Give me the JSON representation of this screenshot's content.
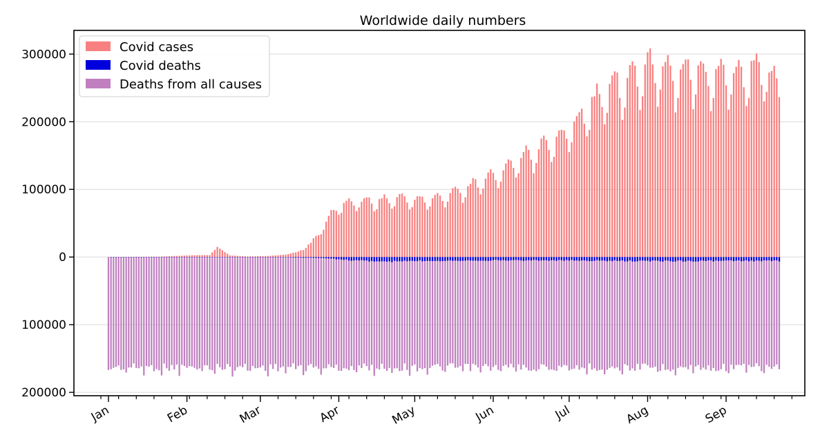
{
  "chart_data": {
    "type": "bar",
    "title": "Worldwide daily numbers",
    "xlabel": "",
    "ylabel": "",
    "ylim": [
      -205000,
      335000
    ],
    "y_ticks": [
      {
        "value": 300000,
        "label": "300000"
      },
      {
        "value": 200000,
        "label": "200000"
      },
      {
        "value": 100000,
        "label": "100000"
      },
      {
        "value": 0,
        "label": "0"
      },
      {
        "value": -100000,
        "label": "100000"
      },
      {
        "value": -200000,
        "label": "200000"
      }
    ],
    "x_months": [
      "Jan",
      "Feb",
      "Mar",
      "Apr",
      "May",
      "Jun",
      "Jul",
      "Aug",
      "Sep"
    ],
    "x_day_start": 0,
    "x_day_end": 265,
    "month_start_days": [
      0,
      31,
      60,
      91,
      121,
      152,
      182,
      213,
      244
    ],
    "legend_position": "top-left",
    "grid": "horizontal",
    "series": [
      {
        "name": "Covid cases",
        "color": "#f88080",
        "keyframes_day_value": [
          [
            0,
            0
          ],
          [
            20,
            600
          ],
          [
            33,
            2600
          ],
          [
            40,
            2900
          ],
          [
            43,
            15000
          ],
          [
            48,
            2400
          ],
          [
            55,
            800
          ],
          [
            63,
            1500
          ],
          [
            70,
            3500
          ],
          [
            75,
            8000
          ],
          [
            80,
            20000
          ],
          [
            85,
            45000
          ],
          [
            88,
            62000
          ],
          [
            91,
            75000
          ],
          [
            96,
            80000
          ],
          [
            101,
            82000
          ],
          [
            106,
            80000
          ],
          [
            111,
            85000
          ],
          [
            116,
            88000
          ],
          [
            121,
            82000
          ],
          [
            126,
            85000
          ],
          [
            131,
            88000
          ],
          [
            136,
            95000
          ],
          [
            141,
            100000
          ],
          [
            146,
            110000
          ],
          [
            151,
            118000
          ],
          [
            156,
            125000
          ],
          [
            161,
            140000
          ],
          [
            166,
            150000
          ],
          [
            171,
            160000
          ],
          [
            176,
            170000
          ],
          [
            181,
            180000
          ],
          [
            186,
            200000
          ],
          [
            191,
            225000
          ],
          [
            196,
            240000
          ],
          [
            201,
            250000
          ],
          [
            206,
            260000
          ],
          [
            211,
            275000
          ],
          [
            216,
            275000
          ],
          [
            221,
            270000
          ],
          [
            226,
            265000
          ],
          [
            231,
            270000
          ],
          [
            236,
            265000
          ],
          [
            241,
            265000
          ],
          [
            246,
            270000
          ],
          [
            251,
            265000
          ],
          [
            256,
            280000
          ],
          [
            261,
            270000
          ],
          [
            265,
            250000
          ]
        ]
      },
      {
        "name": "Covid deaths",
        "color": "#0000dd",
        "keyframes_day_value": [
          [
            0,
            0
          ],
          [
            50,
            200
          ],
          [
            70,
            400
          ],
          [
            85,
            1500
          ],
          [
            95,
            4500
          ],
          [
            105,
            6200
          ],
          [
            110,
            7000
          ],
          [
            115,
            6200
          ],
          [
            125,
            5500
          ],
          [
            140,
            5000
          ],
          [
            160,
            4800
          ],
          [
            180,
            5000
          ],
          [
            200,
            5600
          ],
          [
            210,
            5900
          ],
          [
            230,
            5800
          ],
          [
            250,
            5700
          ],
          [
            265,
            5600
          ]
        ]
      },
      {
        "name": "Deaths from all causes",
        "color": "#c080c0",
        "base": 163000,
        "amplitude": 6000
      }
    ]
  }
}
